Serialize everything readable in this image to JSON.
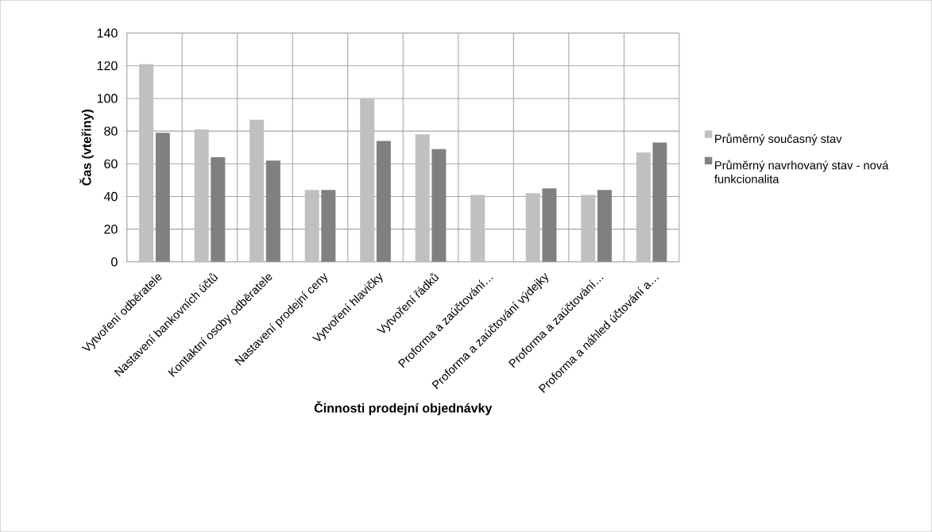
{
  "chart_data": {
    "type": "bar",
    "xlabel": "Činnosti prodejní objednávky",
    "ylabel": "Čas (vteřiny)",
    "categories": [
      "Vytvoření odběratele",
      "Nastavení bankovních účtů",
      "Kontaktní osoby odběratele",
      "Nastavení prodejní ceny",
      "Vytvoření hlavičky",
      "Vytvoření řádků",
      "Proforma a zaúčtování…",
      "Proforma a zaúčtování výdejky",
      "Proforma a zaúčtování…",
      "Proforma a náhled účtování a…"
    ],
    "series": [
      {
        "name": "Průměrný současný stav",
        "color": "#c0c0c0",
        "values": [
          121,
          81,
          87,
          44,
          100,
          78,
          41,
          42,
          41,
          67
        ]
      },
      {
        "name": "Průměrný navrhovaný stav - nová funkcionalita",
        "color": "#808080",
        "values": [
          79,
          64,
          62,
          44,
          74,
          69,
          null,
          45,
          44,
          73
        ]
      }
    ],
    "ylim": [
      0,
      140
    ],
    "yticks": [
      0,
      20,
      40,
      60,
      80,
      100,
      120,
      140
    ],
    "grid": true,
    "legend": "right"
  }
}
